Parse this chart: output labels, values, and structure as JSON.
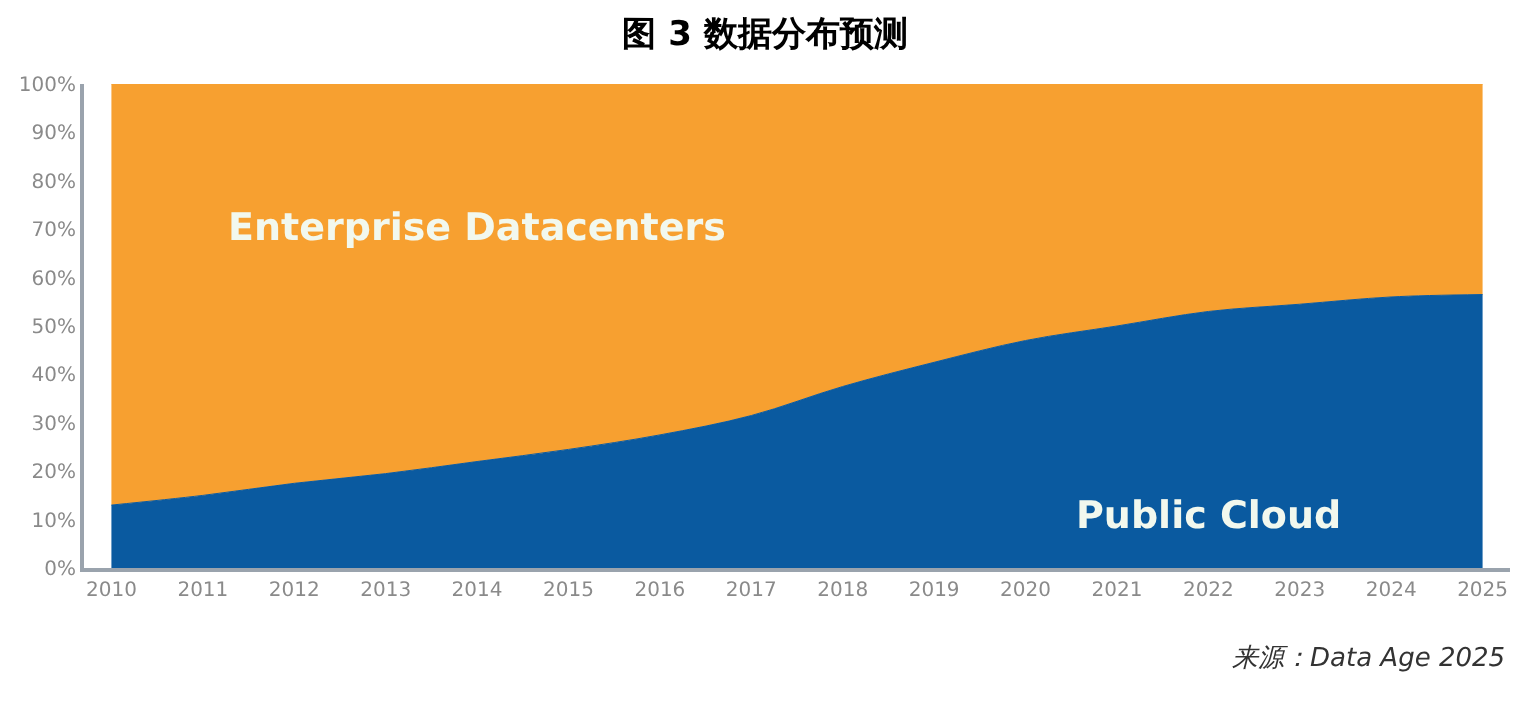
{
  "chart_data": {
    "type": "area",
    "stacked": true,
    "title": "图 3 数据分布预测",
    "x": [
      2010,
      2011,
      2012,
      2013,
      2014,
      2015,
      2016,
      2017,
      2018,
      2019,
      2020,
      2021,
      2022,
      2023,
      2024,
      2025
    ],
    "series": [
      {
        "name": "Public Cloud",
        "color": "#0a5aa0",
        "values": [
          13,
          15,
          17.5,
          19.5,
          22,
          24.5,
          27.5,
          31.5,
          37.5,
          42.5,
          47,
          50,
          53,
          54.5,
          56,
          56.5
        ]
      },
      {
        "name": "Enterprise Datacenters",
        "color": "#f7a030",
        "values": [
          87,
          85,
          82.5,
          80.5,
          78,
          75.5,
          72.5,
          68.5,
          62.5,
          57.5,
          53,
          50,
          47,
          45.5,
          44,
          43.5
        ]
      }
    ],
    "xlim": [
      2009.7,
      2025.3
    ],
    "xticks": [
      2010,
      2011,
      2012,
      2013,
      2014,
      2015,
      2016,
      2017,
      2018,
      2019,
      2020,
      2021,
      2022,
      2023,
      2024,
      2025
    ],
    "ylim": [
      0,
      100
    ],
    "yticks": [
      {
        "value": 0,
        "label": "0%"
      },
      {
        "value": 10,
        "label": "10%"
      },
      {
        "value": 20,
        "label": "20%"
      },
      {
        "value": 30,
        "label": "30%"
      },
      {
        "value": 40,
        "label": "40%"
      },
      {
        "value": 50,
        "label": "50%"
      },
      {
        "value": 60,
        "label": "60%"
      },
      {
        "value": 70,
        "label": "70%"
      },
      {
        "value": 80,
        "label": "80%"
      },
      {
        "value": 90,
        "label": "90%"
      },
      {
        "value": 100,
        "label": "100%"
      }
    ],
    "legend": false,
    "annotations": [
      "来源：Data Age 2025"
    ]
  }
}
